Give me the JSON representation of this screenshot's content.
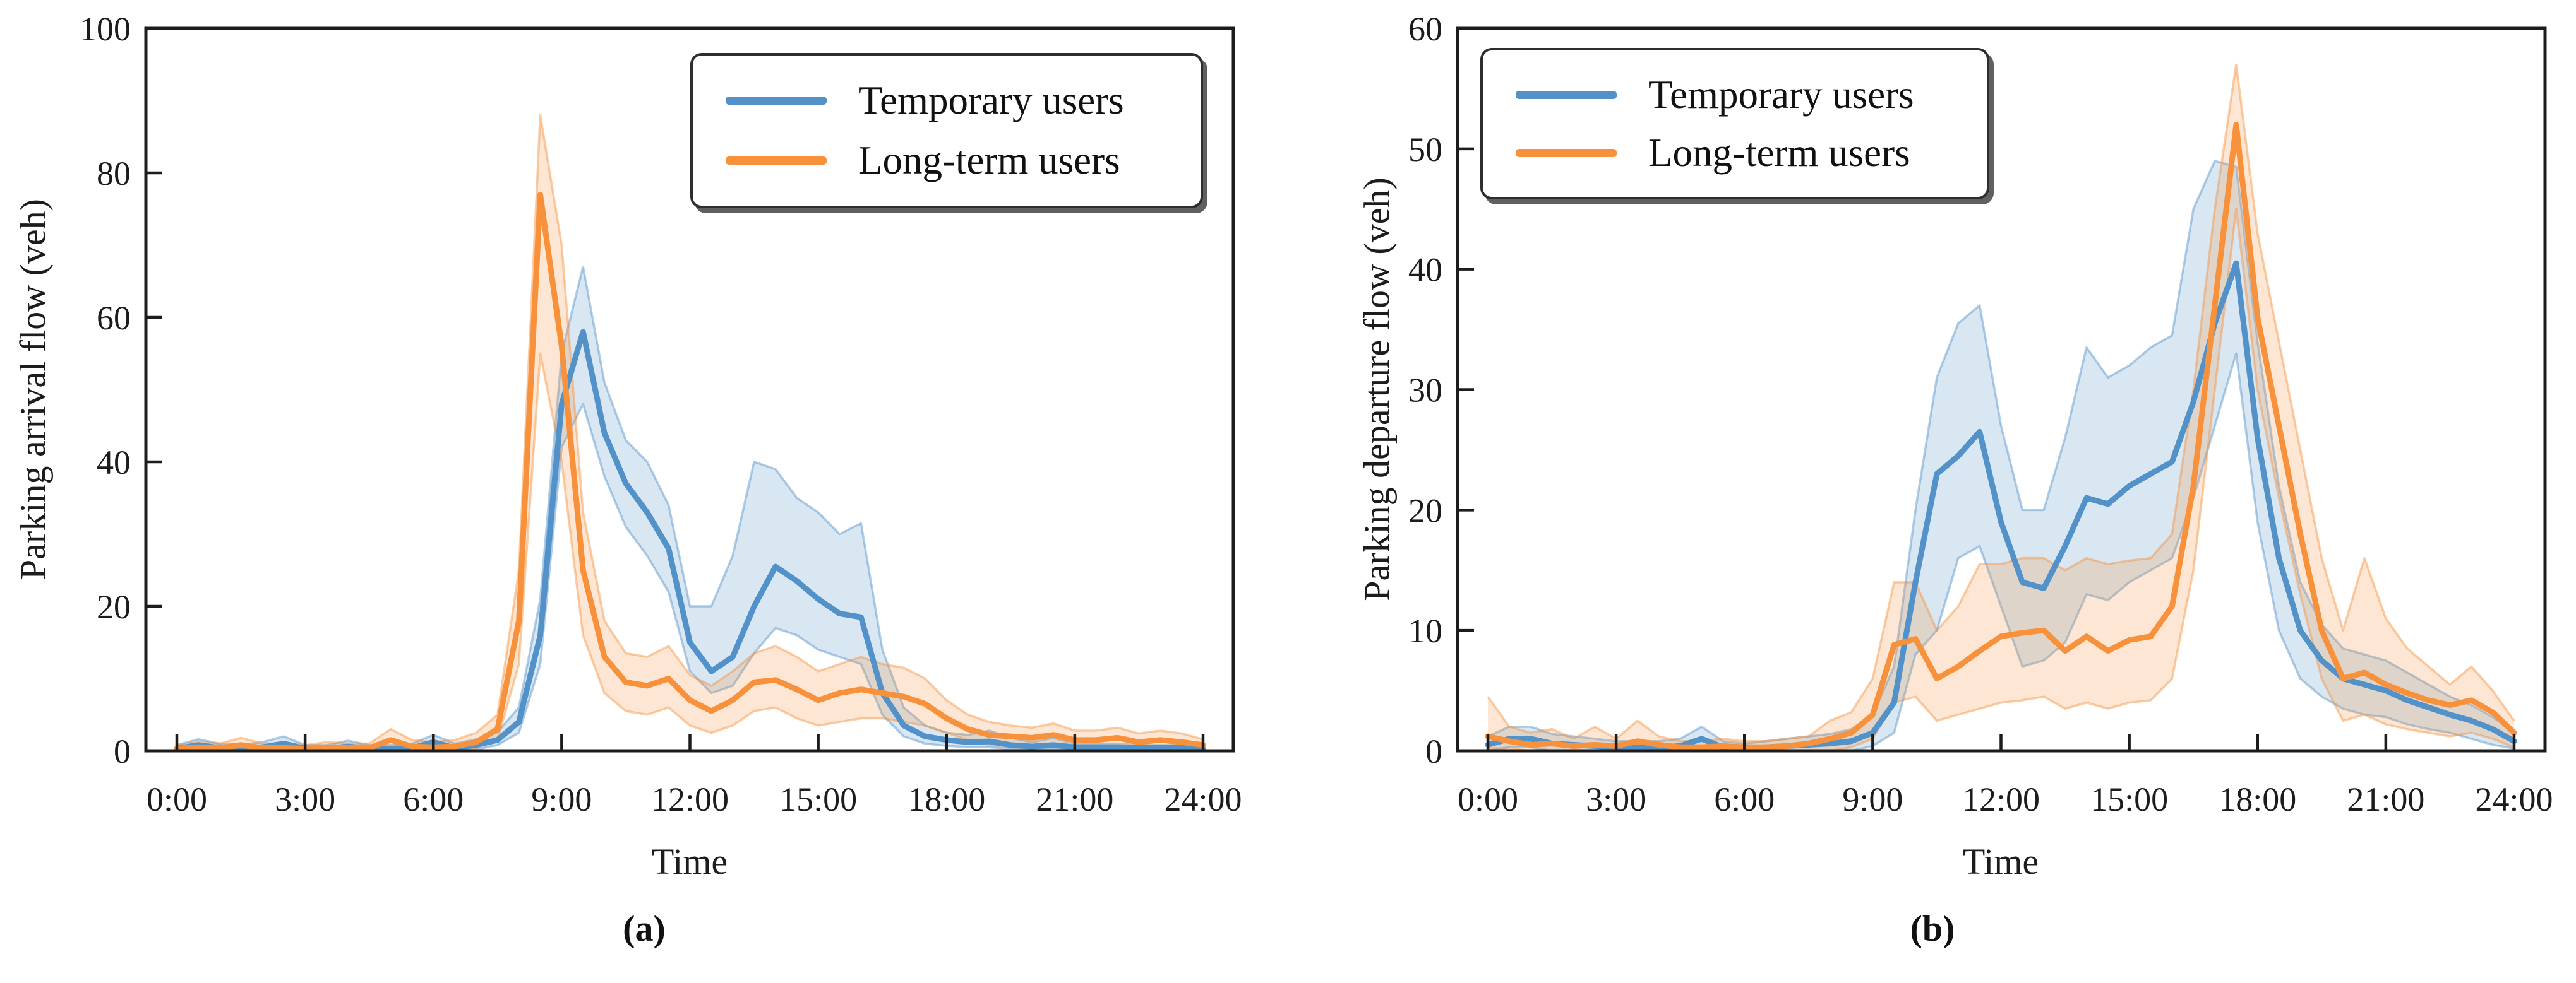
{
  "colors": {
    "temporary_users": "#5391c9",
    "long_term_users": "#f7913c",
    "axis": "#1c1c1c",
    "background": "#ffffff"
  },
  "chart_data": [
    {
      "type": "line",
      "panel_label": "(a)",
      "xlabel": "Time",
      "ylabel": "Parking arrival flow (veh)",
      "x_unit": "hours",
      "x_range": [
        0,
        24
      ],
      "x_step_hours": 0.5,
      "xtick_hours": [
        0,
        3,
        6,
        9,
        12,
        15,
        18,
        21,
        24
      ],
      "xtick_labels": [
        "0:00",
        "3:00",
        "6:00",
        "9:00",
        "12:00",
        "15:00",
        "18:00",
        "21:00",
        "24:00"
      ],
      "ylim": [
        0,
        100
      ],
      "ytick_values": [
        0,
        20,
        40,
        60,
        80,
        100
      ],
      "grid": false,
      "legend_position": "upper right",
      "series": [
        {
          "name": "Temporary users",
          "color": "#5391c9",
          "values": [
            0.3,
            0.8,
            0.4,
            0.3,
            0.5,
            1.0,
            0.3,
            0.3,
            0.6,
            0.3,
            0.3,
            0.4,
            1.2,
            0.4,
            0.8,
            1.5,
            4,
            16,
            48,
            58,
            44,
            37,
            33,
            28,
            15,
            11,
            13,
            20,
            25.5,
            23.5,
            21,
            19,
            18.5,
            8,
            3.5,
            2,
            1.5,
            1.2,
            1.3,
            0.8,
            0.6,
            0.8,
            0.5,
            0.5,
            0.5,
            0.4,
            0.4,
            0.4,
            0.3
          ],
          "band_lower": [
            0,
            0.2,
            0,
            0,
            0.1,
            0.3,
            0,
            0,
            0.1,
            0,
            0,
            0,
            0.4,
            0,
            0.2,
            0.8,
            2.5,
            12,
            42,
            48,
            38,
            31,
            27,
            22,
            11,
            8,
            9,
            13.5,
            17,
            16,
            14,
            13,
            12,
            5,
            2,
            1,
            0.7,
            0.5,
            0.5,
            0.3,
            0.2,
            0.3,
            0.1,
            0.1,
            0.1,
            0.1,
            0.1,
            0.1,
            0
          ],
          "band_upper": [
            0.8,
            1.6,
            1.0,
            0.8,
            1.2,
            2.0,
            0.8,
            0.8,
            1.4,
            0.8,
            0.8,
            1.0,
            2.2,
            1.0,
            1.6,
            2.6,
            6,
            21,
            55,
            67,
            51,
            43,
            40,
            34,
            20,
            20,
            27,
            40,
            39,
            35,
            33,
            30,
            31.5,
            14,
            6,
            3.5,
            2.5,
            2.2,
            2.8,
            1.8,
            1.2,
            1.8,
            1.0,
            1.0,
            1.0,
            0.8,
            0.8,
            0.8,
            0.6
          ]
        },
        {
          "name": "Long-term users",
          "color": "#f7913c",
          "values": [
            0.3,
            0.5,
            0.4,
            0.8,
            0.4,
            0.4,
            0.3,
            0.5,
            0.4,
            0.4,
            1.5,
            0.6,
            0.5,
            0.6,
            1.2,
            3,
            18,
            77,
            56,
            25,
            13,
            9.5,
            9,
            10,
            7,
            5.5,
            7,
            9.5,
            9.8,
            8.5,
            7,
            8,
            8.5,
            8,
            7.5,
            6.5,
            4.5,
            3,
            2.2,
            2,
            1.8,
            2.2,
            1.5,
            1.5,
            1.8,
            1.2,
            1.5,
            1.2,
            0.8
          ],
          "band_lower": [
            0,
            0,
            0,
            0.2,
            0,
            0,
            0,
            0,
            0,
            0,
            0.4,
            0,
            0,
            0,
            0.4,
            1.5,
            12,
            55,
            40,
            16,
            8,
            5.5,
            5,
            6,
            3.5,
            2.5,
            3.5,
            5.5,
            6,
            4.5,
            3.5,
            4,
            4.5,
            4.5,
            4,
            3.5,
            2.5,
            1.5,
            0.8,
            0.6,
            0.5,
            0.8,
            0.3,
            0.3,
            0.5,
            0.2,
            0.3,
            0.2,
            0
          ],
          "band_upper": [
            0.8,
            1.2,
            1.0,
            1.8,
            1.0,
            1.0,
            0.8,
            1.2,
            1.0,
            1.0,
            3.0,
            1.5,
            1.2,
            1.5,
            2.5,
            5,
            25,
            88,
            70,
            33,
            18,
            13.5,
            13,
            14.5,
            10.5,
            9,
            11,
            13.5,
            14.5,
            13,
            11,
            12,
            13,
            12,
            11.5,
            10,
            7,
            5,
            4,
            3.5,
            3.2,
            3.8,
            2.8,
            2.8,
            3.2,
            2.4,
            2.8,
            2.4,
            1.6
          ]
        }
      ]
    },
    {
      "type": "line",
      "panel_label": "(b)",
      "xlabel": "Time",
      "ylabel": "Parking departure flow (veh)",
      "x_unit": "hours",
      "x_range": [
        0,
        24
      ],
      "x_step_hours": 0.5,
      "xtick_hours": [
        0,
        3,
        6,
        9,
        12,
        15,
        18,
        21,
        24
      ],
      "xtick_labels": [
        "0:00",
        "3:00",
        "6:00",
        "9:00",
        "12:00",
        "15:00",
        "18:00",
        "21:00",
        "24:00"
      ],
      "ylim": [
        0,
        60
      ],
      "ytick_values": [
        0,
        10,
        20,
        30,
        40,
        50,
        60
      ],
      "grid": false,
      "legend_position": "upper left",
      "series": [
        {
          "name": "Temporary users",
          "color": "#5391c9",
          "values": [
            0.5,
            1,
            1,
            0.6,
            0.5,
            0.4,
            0.3,
            0.3,
            0.3,
            0.4,
            1,
            0.3,
            0.2,
            0.3,
            0.4,
            0.5,
            0.6,
            0.8,
            1.5,
            4,
            14,
            23,
            24.5,
            26.5,
            19,
            14,
            13.5,
            17,
            21,
            20.5,
            22,
            23,
            24,
            29,
            35.5,
            40.5,
            26,
            16,
            10,
            7.5,
            6,
            5.5,
            5,
            4.2,
            3.6,
            3,
            2.5,
            1.8,
            0.8
          ],
          "band_lower": [
            0,
            0.3,
            0.3,
            0,
            0,
            0,
            0,
            0,
            0,
            0,
            0.3,
            0,
            0,
            0,
            0,
            0,
            0,
            0,
            0.4,
            1.5,
            8,
            10,
            16,
            17,
            12,
            7,
            7.5,
            9,
            13,
            12.5,
            14,
            15,
            16,
            21,
            27,
            33,
            19,
            10,
            6,
            4.5,
            3.5,
            3,
            2.8,
            2.2,
            1.8,
            1.5,
            1,
            0.5,
            0.2
          ],
          "band_upper": [
            1.2,
            2,
            2,
            1.4,
            1.2,
            1,
            0.8,
            0.8,
            0.8,
            1,
            2,
            0.8,
            0.6,
            0.8,
            1,
            1.2,
            1.4,
            1.8,
            3,
            7,
            20,
            31,
            35.5,
            37,
            27,
            20,
            20,
            26,
            33.5,
            31,
            32,
            33.5,
            34.5,
            45,
            49,
            48.5,
            34,
            22,
            14,
            10.5,
            8.5,
            8,
            7.5,
            6.5,
            5.5,
            4.5,
            3.8,
            2.8,
            1.6
          ]
        },
        {
          "name": "Long-term users",
          "color": "#f7913c",
          "values": [
            1.2,
            0.8,
            0.5,
            0.6,
            0.4,
            0.5,
            0.4,
            0.8,
            0.5,
            0.3,
            0.3,
            0.4,
            0.3,
            0.3,
            0.4,
            0.6,
            1,
            1.5,
            3,
            8.8,
            9.3,
            6,
            7,
            8.3,
            9.5,
            9.8,
            10,
            8.3,
            9.5,
            8.3,
            9.2,
            9.5,
            12,
            22,
            37,
            52,
            36,
            27,
            18,
            10,
            6,
            6.5,
            5.5,
            4.8,
            4.2,
            3.8,
            4.2,
            3.2,
            1.5
          ],
          "band_lower": [
            0.2,
            0.2,
            0,
            0,
            0,
            0,
            0,
            0,
            0,
            0,
            0,
            0,
            0,
            0,
            0,
            0,
            0,
            0.3,
            1,
            4,
            4.5,
            2.5,
            3,
            3.5,
            4,
            4.2,
            4.5,
            3.5,
            4,
            3.5,
            4,
            4.2,
            6,
            15,
            30,
            45,
            30,
            21,
            13,
            6,
            2.5,
            3,
            2.2,
            1.8,
            1.5,
            1.2,
            1.5,
            1,
            0.3
          ],
          "band_upper": [
            4.5,
            2,
            1.5,
            1.8,
            1,
            2,
            1,
            2.5,
            1.2,
            0.8,
            0.8,
            1,
            0.8,
            0.8,
            1,
            1.2,
            2.5,
            3.2,
            6,
            14,
            14,
            10,
            12,
            15.5,
            15.5,
            16,
            16,
            15,
            16,
            15.5,
            15.8,
            16,
            18,
            30,
            45,
            57,
            43,
            34,
            25,
            16,
            10,
            16,
            11,
            8.5,
            7,
            5.5,
            7,
            5,
            2.5
          ]
        }
      ]
    }
  ]
}
